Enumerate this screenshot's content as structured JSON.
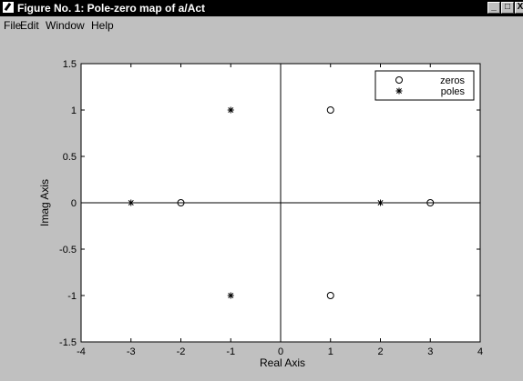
{
  "window": {
    "title": "Figure No. 1: Pole-zero map of  a/Act",
    "controls": {
      "minimize": "_",
      "maximize": "□",
      "close": "X"
    }
  },
  "menu": {
    "items": [
      "File",
      "Edit",
      "Window",
      "Help"
    ]
  },
  "chart_data": {
    "type": "scatter",
    "title": "",
    "xlabel": "Real Axis",
    "ylabel": "Imag Axis",
    "xlim": [
      -4,
      4
    ],
    "ylim": [
      -1.5,
      1.5
    ],
    "xticks": [
      -4,
      -3,
      -2,
      -1,
      0,
      1,
      2,
      3,
      4
    ],
    "yticks": [
      -1.5,
      -1,
      -0.5,
      0,
      0.5,
      1,
      1.5
    ],
    "grid": false,
    "legend_position": "top-right",
    "series": [
      {
        "name": "zeros",
        "marker": "circle",
        "x": [
          -2,
          1,
          1,
          3
        ],
        "y": [
          0,
          1,
          -1,
          0
        ]
      },
      {
        "name": "poles",
        "marker": "asterisk",
        "x": [
          -3,
          -1,
          -1,
          2
        ],
        "y": [
          0,
          1,
          -1,
          0
        ]
      }
    ]
  }
}
